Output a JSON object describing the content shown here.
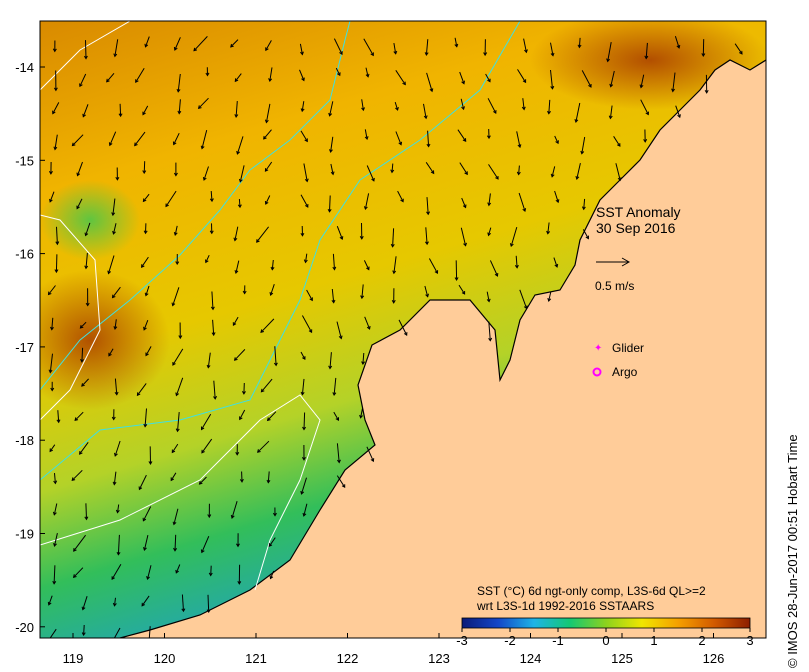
{
  "map": {
    "title": "SST Anomaly",
    "date": "30 Sep 2016",
    "vector_scale_label": "0.5 m/s",
    "legend": {
      "glider_label": "Glider",
      "argo_label": "Argo",
      "glider_color": "#ff00ff",
      "argo_color": "#ff00ff"
    },
    "colorbar": {
      "line1": "SST (°C) 6d ngt-only comp, L3S-6d QL>=2",
      "line2": "wrt L3S-1d 1992-2016 SSTAARS",
      "ticks": [
        "-3",
        "-2",
        "-1",
        "0",
        "1",
        "2",
        "3"
      ],
      "min": -3,
      "max": 3,
      "colors": [
        "#0a1a78",
        "#1446c8",
        "#1eb4e6",
        "#14c873",
        "#8cd21e",
        "#f0e600",
        "#f5a000",
        "#d25a00",
        "#8c1e00"
      ]
    },
    "lon_ticks": [
      "119",
      "120",
      "121",
      "122",
      "123",
      "124",
      "125",
      "126"
    ],
    "lat_ticks": [
      "-14",
      "-15",
      "-16",
      "-17",
      "-18",
      "-19",
      "-20"
    ],
    "credit": "© IMOS 28-Jun-2017 00:51 Hobart Time",
    "land_color": "#ffcc99"
  }
}
